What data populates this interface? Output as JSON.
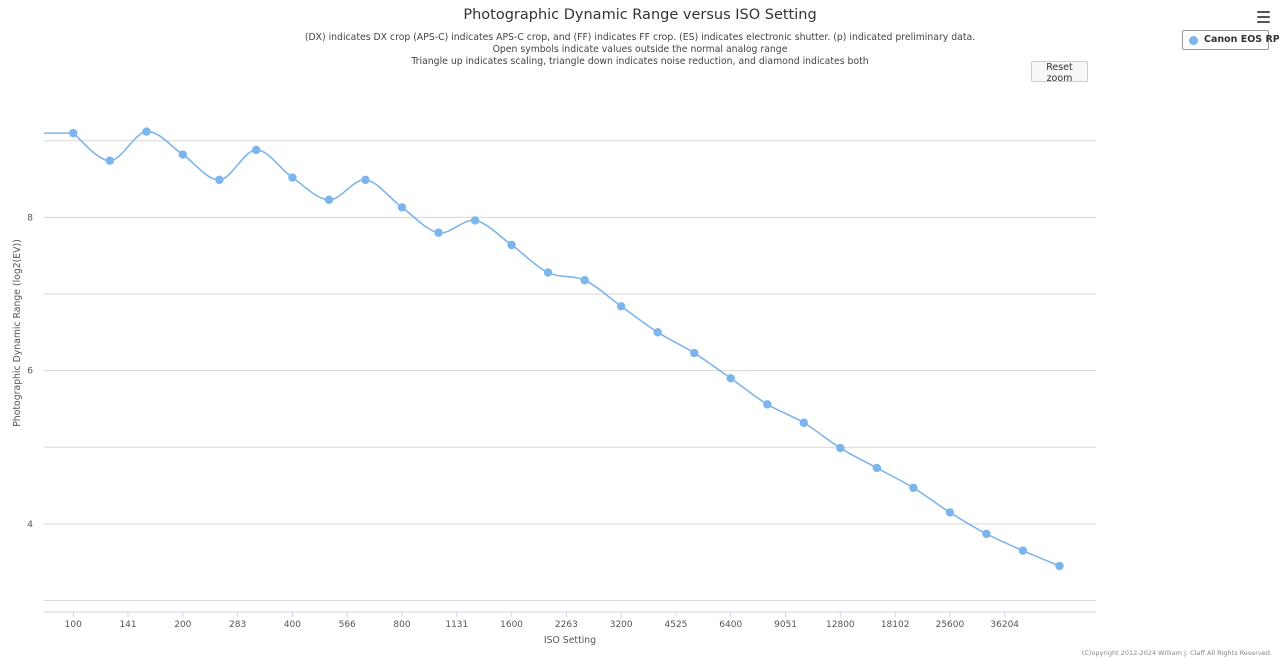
{
  "chart_data": {
    "type": "line",
    "title": "Photographic Dynamic Range versus ISO Setting",
    "subtitle_lines": [
      "(DX) indicates DX crop (APS-C) indicates APS-C crop, and (FF) indicates FF crop. (ES) indicates electronic shutter. (p) indicated preliminary data.",
      "Open symbols indicate values outside the normal analog range",
      "Triangle up indicates scaling, triangle down indicates noise reduction, and diamond indicates both"
    ],
    "xlabel": "ISO Setting",
    "ylabel": "Photographic Dynamic Range (log2(EV))",
    "x_tick_labels": [
      "100",
      "141",
      "200",
      "283",
      "400",
      "566",
      "800",
      "1131",
      "1600",
      "2263",
      "3200",
      "4525",
      "6400",
      "9051",
      "12800",
      "18102",
      "25600",
      "36204"
    ],
    "y_ticks": [
      4,
      6,
      8
    ],
    "y_gridlines": [
      3,
      4,
      5,
      6,
      7,
      8,
      9
    ],
    "ylim": [
      2.85,
      9.95
    ],
    "x_log2_range": [
      -0.267,
      9.333
    ],
    "grid": true,
    "legend_position": "top-right",
    "series": [
      {
        "name": "Canon EOS RP",
        "color": "#7cb5ec",
        "points": [
          {
            "iso": 100,
            "y": 9.1
          },
          {
            "iso": 126,
            "y": 8.74
          },
          {
            "iso": 159,
            "y": 9.12
          },
          {
            "iso": 200,
            "y": 8.82
          },
          {
            "iso": 252,
            "y": 8.49
          },
          {
            "iso": 318,
            "y": 8.88
          },
          {
            "iso": 400,
            "y": 8.52
          },
          {
            "iso": 504,
            "y": 8.23
          },
          {
            "iso": 635,
            "y": 8.49
          },
          {
            "iso": 800,
            "y": 8.13
          },
          {
            "iso": 1008,
            "y": 7.8
          },
          {
            "iso": 1270,
            "y": 7.96
          },
          {
            "iso": 1600,
            "y": 7.64
          },
          {
            "iso": 2016,
            "y": 7.28
          },
          {
            "iso": 2540,
            "y": 7.18
          },
          {
            "iso": 3200,
            "y": 6.84
          },
          {
            "iso": 4032,
            "y": 6.5
          },
          {
            "iso": 5080,
            "y": 6.23
          },
          {
            "iso": 6400,
            "y": 5.9
          },
          {
            "iso": 8064,
            "y": 5.56
          },
          {
            "iso": 10160,
            "y": 5.32
          },
          {
            "iso": 12800,
            "y": 4.99
          },
          {
            "iso": 16127,
            "y": 4.73
          },
          {
            "iso": 20319,
            "y": 4.47
          },
          {
            "iso": 25600,
            "y": 4.15
          },
          {
            "iso": 32254,
            "y": 3.87
          },
          {
            "iso": 40637,
            "y": 3.65
          },
          {
            "iso": 51200,
            "y": 3.45
          }
        ]
      }
    ],
    "credit": "(C)opyright 2012-2024 William J. Claff All Rights Reserved."
  },
  "ui": {
    "reset_zoom_label": "Reset zoom"
  }
}
